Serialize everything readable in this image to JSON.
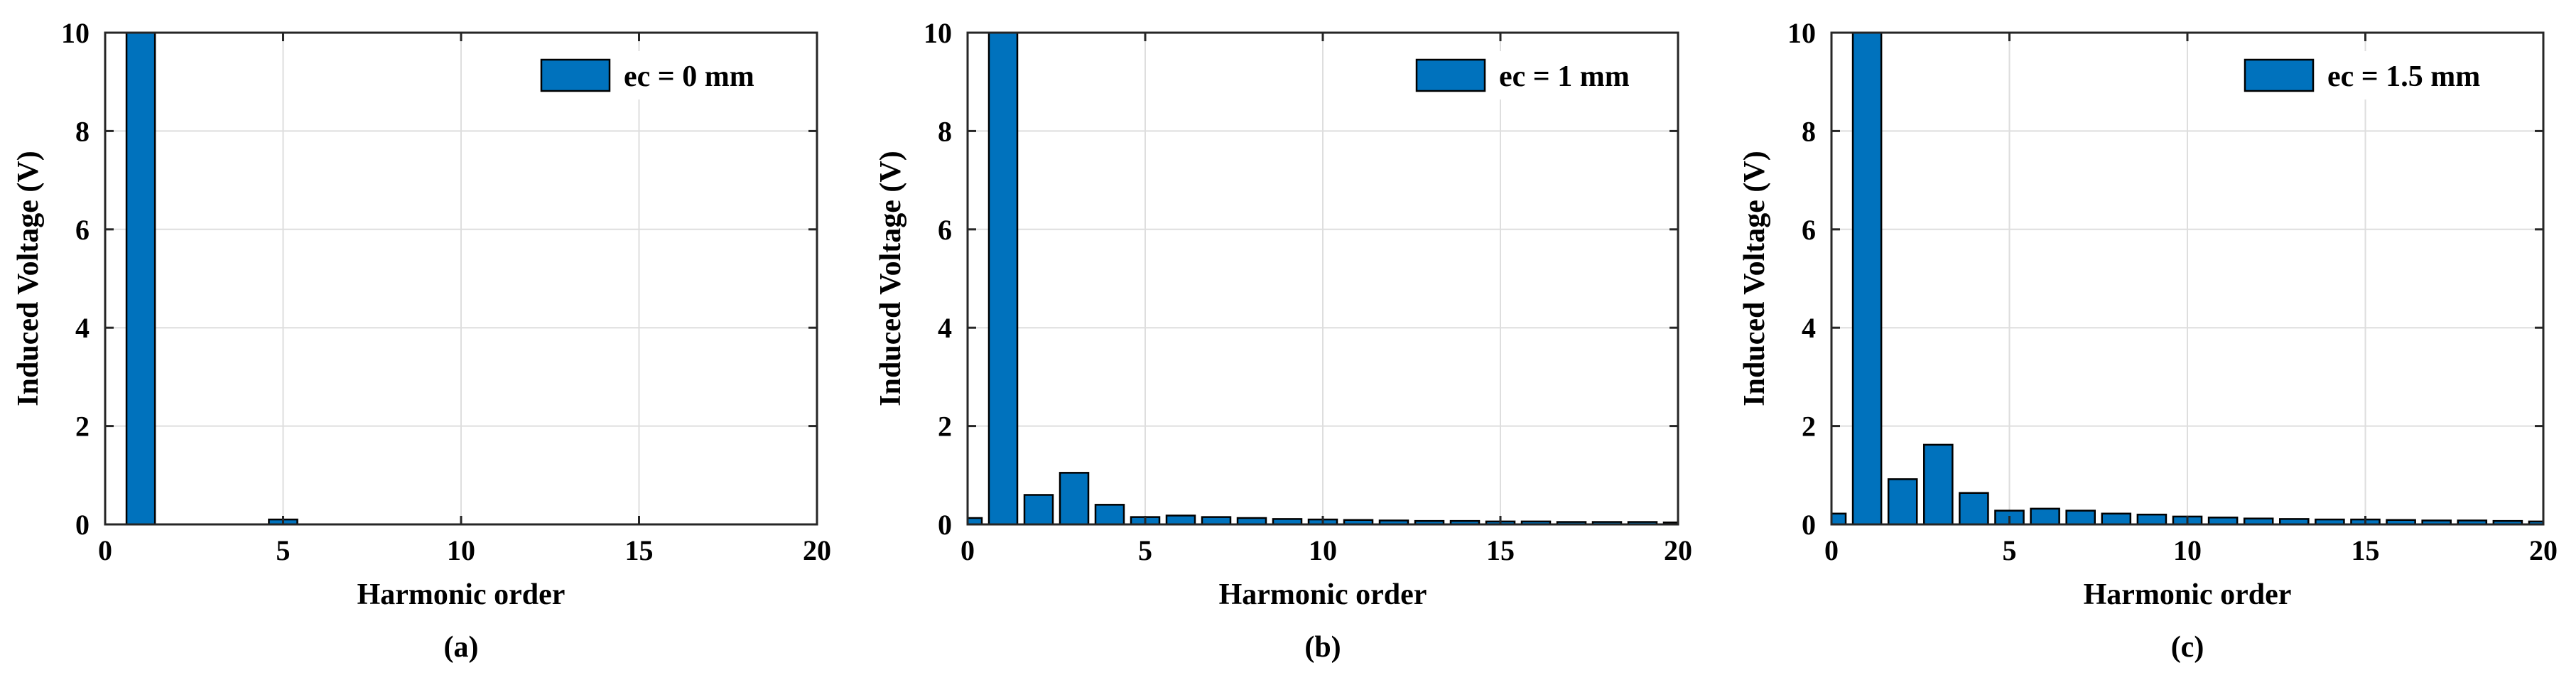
{
  "colors": {
    "bar_fill": "#0072bd",
    "bar_edge": "#000000",
    "grid": "#dedede",
    "axes": "#262626",
    "background": "#ffffff"
  },
  "chart_data": [
    {
      "type": "bar",
      "caption": "(a)",
      "xlabel": "Harmonic order",
      "ylabel": "Induced Voltage (V)",
      "xlim": [
        0,
        20
      ],
      "ylim": [
        0,
        10
      ],
      "x_ticks": [
        "0",
        "5",
        "10",
        "15",
        "20"
      ],
      "y_ticks": [
        "0",
        "2",
        "4",
        "6",
        "8",
        "10"
      ],
      "grid": true,
      "legend_position": "top-right",
      "series": [
        {
          "name": "ec = 0 mm",
          "x": [
            0,
            1,
            2,
            3,
            4,
            5,
            6,
            7,
            8,
            9,
            10,
            11,
            12,
            13,
            14,
            15,
            16,
            17,
            18,
            19,
            20
          ],
          "values": [
            0,
            10,
            0,
            0,
            0,
            0.1,
            0,
            0,
            0,
            0,
            0,
            0,
            0,
            0,
            0,
            0,
            0,
            0,
            0,
            0,
            0
          ]
        }
      ]
    },
    {
      "type": "bar",
      "caption": "(b)",
      "xlabel": "Harmonic order",
      "ylabel": "Induced Voltage (V)",
      "xlim": [
        0,
        20
      ],
      "ylim": [
        0,
        10
      ],
      "x_ticks": [
        "0",
        "5",
        "10",
        "15",
        "20"
      ],
      "y_ticks": [
        "0",
        "2",
        "4",
        "6",
        "8",
        "10"
      ],
      "grid": true,
      "legend_position": "top-right",
      "series": [
        {
          "name": "ec = 1 mm",
          "x": [
            0,
            1,
            2,
            3,
            4,
            5,
            6,
            7,
            8,
            9,
            10,
            11,
            12,
            13,
            14,
            15,
            16,
            17,
            18,
            19,
            20
          ],
          "values": [
            0.13,
            10,
            0.6,
            1.05,
            0.4,
            0.15,
            0.18,
            0.15,
            0.13,
            0.11,
            0.1,
            0.09,
            0.08,
            0.07,
            0.07,
            0.06,
            0.06,
            0.05,
            0.05,
            0.05,
            0.04
          ]
        }
      ]
    },
    {
      "type": "bar",
      "caption": "(c)",
      "xlabel": "Harmonic order",
      "ylabel": "Induced Voltage (V)",
      "xlim": [
        0,
        20
      ],
      "ylim": [
        0,
        10
      ],
      "x_ticks": [
        "0",
        "5",
        "10",
        "15",
        "20"
      ],
      "y_ticks": [
        "0",
        "2",
        "4",
        "6",
        "8",
        "10"
      ],
      "grid": true,
      "legend_position": "top-right",
      "series": [
        {
          "name": "ec = 1.5 mm",
          "x": [
            0,
            1,
            2,
            3,
            4,
            5,
            6,
            7,
            8,
            9,
            10,
            11,
            12,
            13,
            14,
            15,
            16,
            17,
            18,
            19,
            20
          ],
          "values": [
            0.22,
            10,
            0.92,
            1.62,
            0.64,
            0.28,
            0.32,
            0.28,
            0.22,
            0.2,
            0.16,
            0.14,
            0.12,
            0.11,
            0.1,
            0.1,
            0.09,
            0.08,
            0.08,
            0.07,
            0.06
          ]
        }
      ]
    }
  ]
}
